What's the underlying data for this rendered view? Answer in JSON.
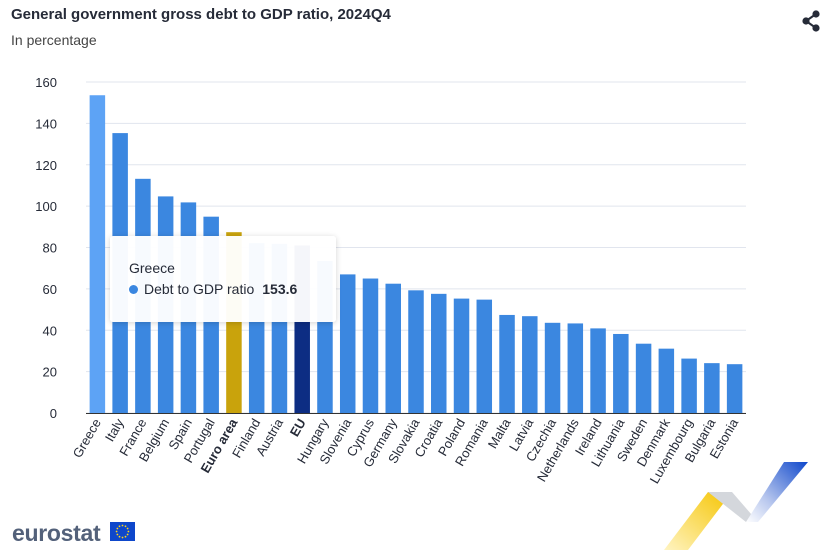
{
  "header": {
    "title": "General government gross debt to GDP ratio, 2024Q4",
    "subtitle": "In percentage",
    "share_icon": "share-icon"
  },
  "tooltip": {
    "country": "Greece",
    "series": "Debt to GDP ratio",
    "value": "153.6"
  },
  "footer": {
    "logo": "eurostat"
  },
  "colors": {
    "bar": "#3b87e0",
    "bar_hover": "#5da3f5",
    "euro_area": "#c9a30c",
    "eu": "#0d2d83",
    "grid": "#e1e5ee"
  },
  "chart_data": {
    "type": "bar",
    "title": "General government gross debt to GDP ratio, 2024Q4",
    "subtitle": "In percentage",
    "ylim": [
      0,
      160
    ],
    "yticks": [
      0,
      20,
      40,
      60,
      80,
      100,
      120,
      140,
      160
    ],
    "grid": true,
    "categories": [
      "Greece",
      "Italy",
      "France",
      "Belgium",
      "Spain",
      "Portugal",
      "Euro area",
      "Finland",
      "Austria",
      "EU",
      "Hungary",
      "Slovenia",
      "Cyprus",
      "Germany",
      "Slovakia",
      "Croatia",
      "Poland",
      "Romania",
      "Malta",
      "Latvia",
      "Czechia",
      "Netherlands",
      "Ireland",
      "Lithuania",
      "Sweden",
      "Denmark",
      "Luxembourg",
      "Bulgaria",
      "Estonia"
    ],
    "bold_categories": [
      "Euro area",
      "EU"
    ],
    "series": [
      {
        "name": "Debt to GDP ratio",
        "values": [
          153.6,
          135.3,
          113.2,
          104.7,
          101.8,
          94.9,
          87.4,
          82.1,
          81.8,
          81.0,
          73.5,
          67.0,
          65.0,
          62.5,
          59.3,
          57.6,
          55.3,
          54.8,
          47.4,
          46.8,
          43.6,
          43.3,
          40.9,
          38.2,
          33.5,
          31.1,
          26.3,
          24.1,
          23.6
        ]
      }
    ]
  }
}
